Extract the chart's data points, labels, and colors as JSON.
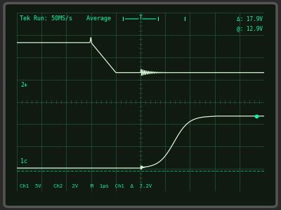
{
  "bg_color": "#2a2a2a",
  "screen_bg": "#162616",
  "grid_color": "#2a6a4a",
  "trace_color": "#e0ffe0",
  "text_color": "#00ffaa",
  "title_text": "Tek Run: 50MS/s    Average",
  "delta_line1": "Δ: 17.9V",
  "delta_line2": "@: 12.9V",
  "bottom_text": "Ch1  5V   Ch2   2V   M  1us  Ch1  7.2V",
  "label_2plus": "2+",
  "label_1c": "1c",
  "n_points": 1000,
  "grid_rows": 8,
  "grid_cols": 10
}
